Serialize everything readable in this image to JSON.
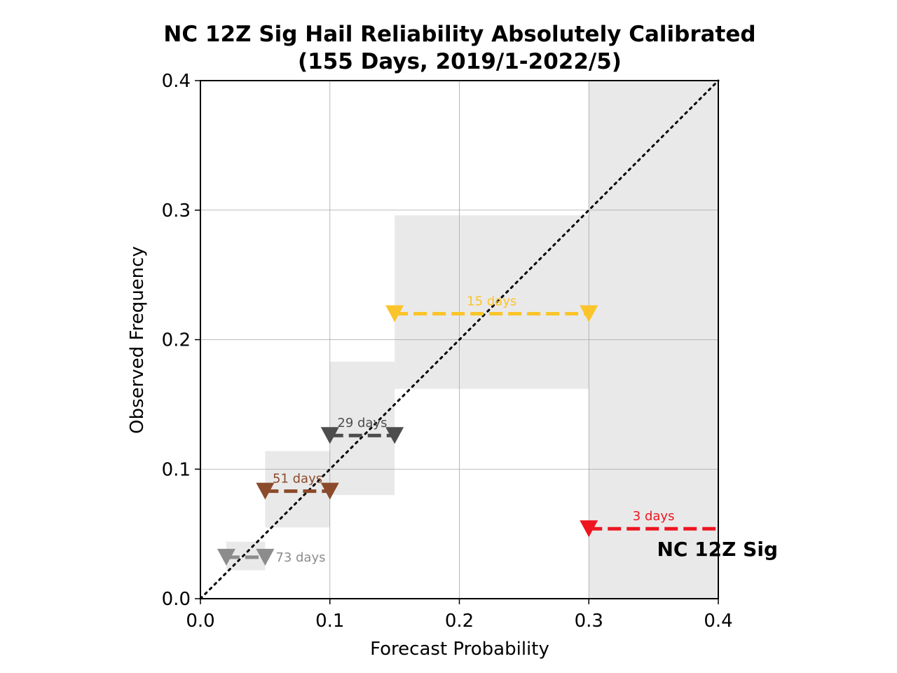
{
  "chart_data": {
    "type": "scatter",
    "title": "NC 12Z Sig Hail Reliability Absolutely Calibrated",
    "subtitle": "(155 Days, 2019/1-2022/5)",
    "xlabel": "Forecast Probability",
    "ylabel": "Observed Frequency",
    "xlim": [
      0.0,
      0.4
    ],
    "ylim": [
      0.0,
      0.4
    ],
    "xticks": [
      "0.0",
      "0.1",
      "0.2",
      "0.3",
      "0.4"
    ],
    "yticks": [
      "0.0",
      "0.1",
      "0.2",
      "0.3",
      "0.4"
    ],
    "grid": true,
    "diagonal": "dotted black y=x",
    "legend": {
      "label": "NC 12Z Sig",
      "placement": "bottom-right"
    },
    "series": [
      {
        "bin": [
          0.02,
          0.05
        ],
        "observed": 0.032,
        "label": "73 days",
        "color": "#8c8c8c",
        "range": [
          0.022,
          0.044
        ]
      },
      {
        "bin": [
          0.05,
          0.1
        ],
        "observed": 0.083,
        "label": "51 days",
        "color": "#8b4a2b",
        "range": [
          0.055,
          0.114
        ]
      },
      {
        "bin": [
          0.1,
          0.15
        ],
        "observed": 0.126,
        "label": "29 days",
        "color": "#4d4d4d",
        "range": [
          0.08,
          0.183
        ]
      },
      {
        "bin": [
          0.15,
          0.3
        ],
        "observed": 0.22,
        "label": "15 days",
        "color": "#fbc42a",
        "range": [
          0.162,
          0.296
        ]
      },
      {
        "bin": [
          0.3,
          0.4
        ],
        "observed": 0.054,
        "label": "3 days",
        "color": "#ee1520",
        "range": [
          0.0,
          0.4
        ]
      }
    ]
  }
}
